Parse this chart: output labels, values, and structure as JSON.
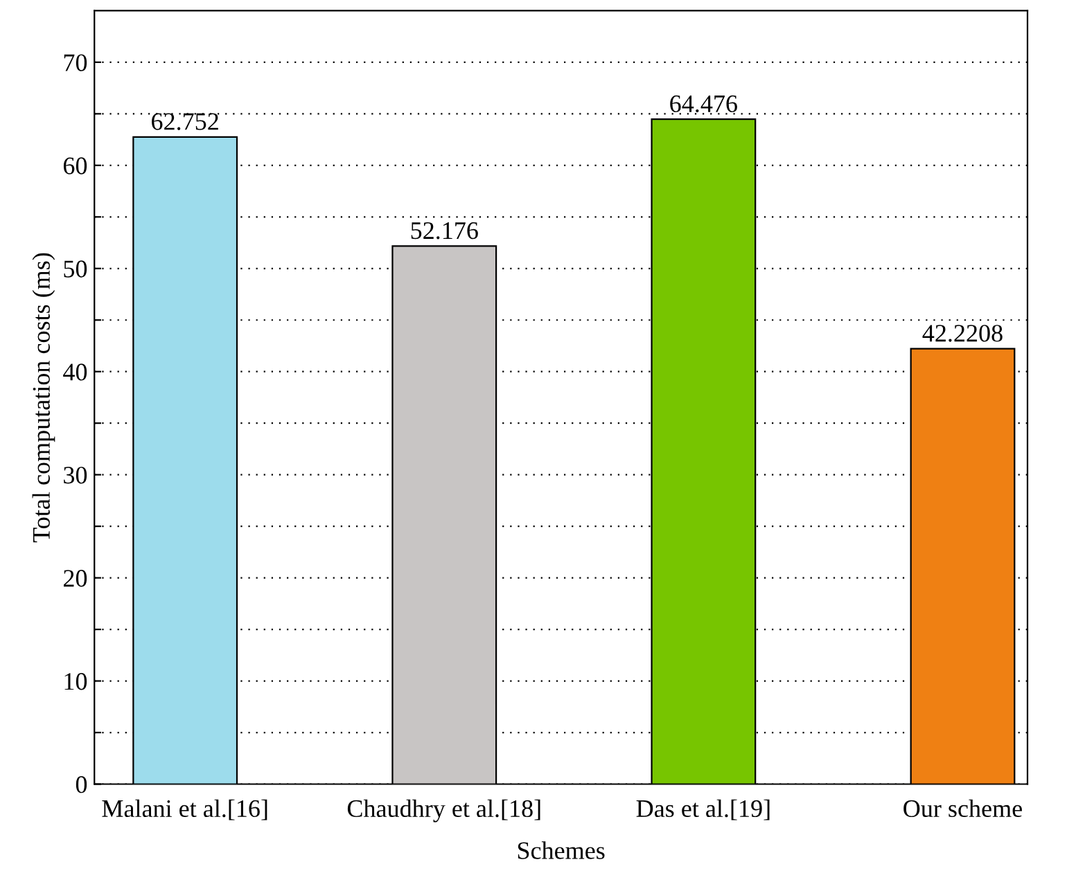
{
  "chart_data": {
    "type": "bar",
    "xlabel": "Schemes",
    "ylabel": "Total computation costs (ms)",
    "categories": [
      "Malani et al.[16]",
      "Chaudhry et al.[18]",
      "Das et al.[19]",
      "Our scheme"
    ],
    "values": [
      62.752,
      52.176,
      64.476,
      42.2208
    ],
    "colors": [
      "#9ddcec",
      "#c8c5c4",
      "#77c500",
      "#ef8013"
    ],
    "ylim": [
      0,
      75
    ],
    "yticks": [
      0,
      {
        "value": 5,
        "label": null
      },
      10,
      {
        "value": 15,
        "label": null
      },
      20,
      {
        "value": 25,
        "label": null
      },
      30,
      {
        "value": 35,
        "label": null
      },
      40,
      {
        "value": 45,
        "label": null
      },
      50,
      {
        "value": 55,
        "label": null
      },
      60,
      {
        "value": 65,
        "label": null
      },
      70
    ],
    "grid": "y",
    "data_labels": true,
    "legend": false
  }
}
